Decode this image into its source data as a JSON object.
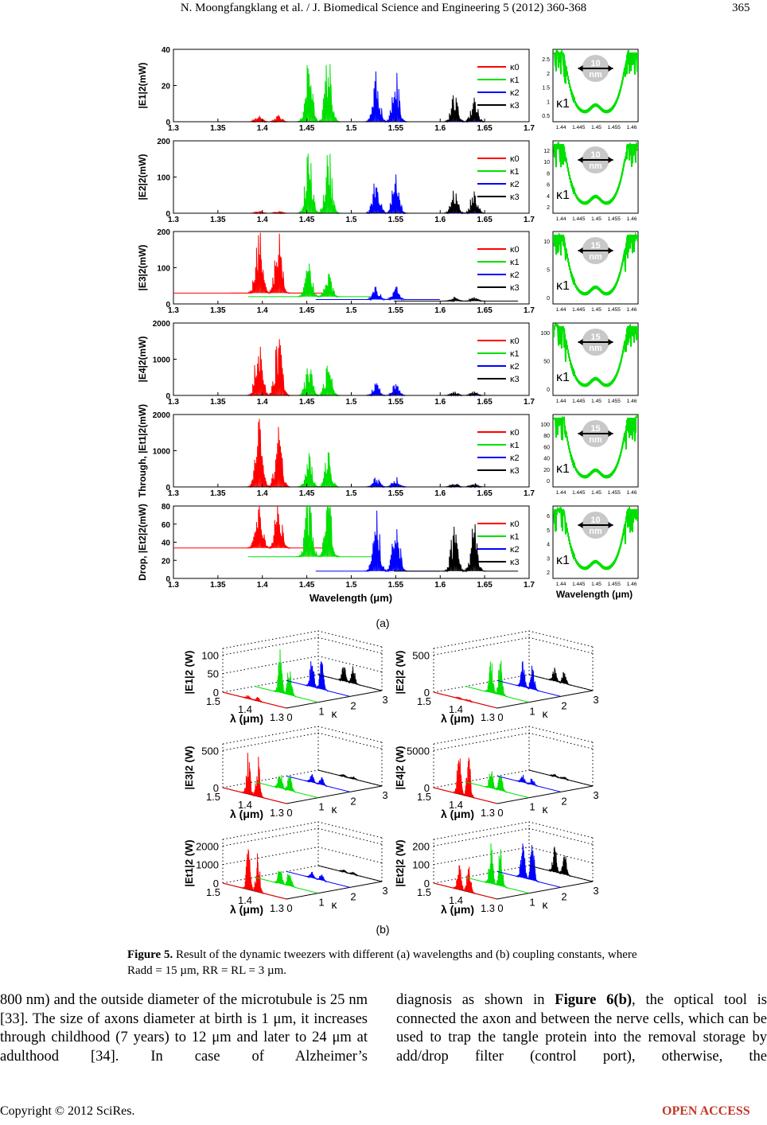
{
  "header": {
    "running_title": "N. Moongfangklang et al. / J. Biomedical Science and Engineering 5 (2012) 360-368",
    "page_number": "365"
  },
  "figure": {
    "colors": [
      "#ff0000",
      "#00e000",
      "#0000ff",
      "#000000"
    ],
    "part_a": {
      "label": "(a)",
      "xlabel": "Wavelength (μm)",
      "inset_xlabel": "Wavelength (μm)",
      "panels": [
        {
          "ylabel": "|E1|2(mW)",
          "yticks": [
            "0",
            "20",
            "40"
          ],
          "xticks": [
            "1.3",
            "1.35",
            "1.4",
            "1.45",
            "1.5",
            "1.55",
            "1.6",
            "1.65",
            "1.7"
          ],
          "legend": [
            "κ0",
            "κ1",
            "κ2",
            "κ3"
          ],
          "inset": {
            "yticks": [
              "0.5",
              "1",
              "1.5",
              "2",
              "2.5"
            ],
            "xticks": [
              "1.44",
              "1.445",
              "1.45",
              "1.455",
              "1.46"
            ],
            "badge_value": "10",
            "badge_unit": "nm",
            "kappa": "κ1"
          }
        },
        {
          "ylabel": "|E2|2(mW)",
          "yticks": [
            "0",
            "100",
            "200"
          ],
          "xticks": [
            "1.3",
            "1.35",
            "1.4",
            "1.45",
            "1.5",
            "1.55",
            "1.6",
            "1.65",
            "1.7"
          ],
          "legend": [
            "κ0",
            "κ1",
            "κ2",
            "κ3"
          ],
          "inset": {
            "yticks": [
              "2",
              "4",
              "6",
              "8",
              "10",
              "12"
            ],
            "xticks": [
              "1.44",
              "1.445",
              "1.45",
              "1.455",
              "1.46"
            ],
            "badge_value": "10",
            "badge_unit": "nm",
            "kappa": "κ1"
          }
        },
        {
          "ylabel": "|E3|2(mW)",
          "yticks": [
            "0",
            "100",
            "200"
          ],
          "xticks": [
            "1.3",
            "1.35",
            "1.4",
            "1.45",
            "1.5",
            "1.55",
            "1.6",
            "1.65",
            "1.7"
          ],
          "legend": [
            "κ0",
            "κ1",
            "κ2",
            "κ3"
          ],
          "inset": {
            "yticks": [
              "0",
              "5",
              "10"
            ],
            "xticks": [
              "1.44",
              "1.445",
              "1.45",
              "1.455",
              "1.46"
            ],
            "badge_value": "15",
            "badge_unit": "nm",
            "kappa": "κ1"
          }
        },
        {
          "ylabel": "|E4|2(mW)",
          "yticks": [
            "0",
            "1000",
            "2000"
          ],
          "xticks": [
            "1.3",
            "1.35",
            "1.4",
            "1.45",
            "1.5",
            "1.55",
            "1.6",
            "1.65",
            "1.7"
          ],
          "legend": [
            "κ0",
            "κ1",
            "κ2",
            "κ3"
          ],
          "inset": {
            "yticks": [
              "0",
              "50",
              "100"
            ],
            "xticks": [
              "1.44",
              "1.445",
              "1.45",
              "1.455",
              "1.46"
            ],
            "badge_value": "15",
            "badge_unit": "nm",
            "kappa": "κ1"
          }
        },
        {
          "ylabel": "Through, |Et1|2(mW)",
          "yticks": [
            "0",
            "1000",
            "2000"
          ],
          "xticks": [
            "1.3",
            "1.35",
            "1.4",
            "1.45",
            "1.5",
            "1.55",
            "1.6",
            "1.65",
            "1.7"
          ],
          "legend": [
            "κ0",
            "κ1",
            "κ2",
            "κ3"
          ],
          "inset": {
            "yticks": [
              "0",
              "20",
              "40",
              "60",
              "80",
              "100"
            ],
            "xticks": [
              "1.44",
              "1.445",
              "1.45",
              "1.455",
              "1.46"
            ],
            "badge_value": "15",
            "badge_unit": "nm",
            "kappa": "κ1"
          }
        },
        {
          "ylabel": "Drop, |Et2|2(mW)",
          "yticks": [
            "0",
            "20",
            "40",
            "60",
            "80"
          ],
          "xticks": [
            "1.3",
            "1.35",
            "1.4",
            "1.45",
            "1.5",
            "1.55",
            "1.6",
            "1.65",
            "1.7"
          ],
          "legend": [
            "κ0",
            "κ1",
            "κ2",
            "κ3"
          ],
          "inset": {
            "yticks": [
              "2",
              "3",
              "4",
              "5",
              "6"
            ],
            "xticks": [
              "1.44",
              "1.445",
              "1.45",
              "1.455",
              "1.46"
            ],
            "badge_value": "10",
            "badge_unit": "nm",
            "kappa": "κ1"
          }
        }
      ]
    },
    "part_b": {
      "label": "(b)",
      "panels": [
        {
          "zlabel": "|E1|2 (W)",
          "zticks": [
            "0",
            "50",
            "100"
          ],
          "lambda_ticks": [
            "1.5",
            "1.4",
            "1.3"
          ],
          "kappa_ticks": [
            "0",
            "1",
            "2",
            "3"
          ],
          "lambda_label": "λ (μm)",
          "kappa_label": "κ"
        },
        {
          "zlabel": "|E2|2 (W)",
          "zticks": [
            "0",
            "500"
          ],
          "lambda_ticks": [
            "1.5",
            "1.4",
            "1.3"
          ],
          "kappa_ticks": [
            "0",
            "1",
            "2",
            "3"
          ],
          "lambda_label": "λ (μm)",
          "kappa_label": "κ"
        },
        {
          "zlabel": "|E3|2 (W)",
          "zticks": [
            "0",
            "500"
          ],
          "lambda_ticks": [
            "1.5",
            "1.4",
            "1.3"
          ],
          "kappa_ticks": [
            "0",
            "1",
            "2",
            "3"
          ],
          "lambda_label": "λ (μm)",
          "kappa_label": "κ"
        },
        {
          "zlabel": "|E4|2 (W)",
          "zticks": [
            "0",
            "5000"
          ],
          "lambda_ticks": [
            "1.5",
            "1.4",
            "1.3"
          ],
          "kappa_ticks": [
            "0",
            "1",
            "2",
            "3"
          ],
          "lambda_label": "λ (μm)",
          "kappa_label": "κ"
        },
        {
          "zlabel": "|Et1|2 (W)",
          "zticks": [
            "0",
            "1000",
            "2000"
          ],
          "lambda_ticks": [
            "1.5",
            "1.4",
            "1.3"
          ],
          "kappa_ticks": [
            "0",
            "1",
            "2",
            "3"
          ],
          "lambda_label": "λ (μm)",
          "kappa_label": "κ"
        },
        {
          "zlabel": "|Et2|2 (W)",
          "zticks": [
            "0",
            "100",
            "200"
          ],
          "lambda_ticks": [
            "1.5",
            "1.4",
            "1.3"
          ],
          "kappa_ticks": [
            "0",
            "1",
            "2",
            "3"
          ],
          "lambda_label": "λ (μm)",
          "kappa_label": "κ"
        }
      ]
    },
    "caption": {
      "label": "Figure 5.",
      "text": "Result of the dynamic tweezers with different (a) wavelengths and (b) coupling constants, where Radd = 15 µm, RR = RL = 3 µm."
    }
  },
  "body": {
    "left": "800 nm) and the outside diameter of the microtubule is 25 nm [33]. The size of axons diameter at birth is 1 μm, it increases through childhood (7 years) to 12 μm and later to 24 μm at adulthood [34]. In case of Alzheimer’s",
    "right": [
      "diagnosis as shown in ",
      "Figure 6(b)",
      ", the optical tool is connected the axon and between the nerve cells, which can be used to trap the tangle protein into the removal storage by add/drop filter (control port), otherwise, the"
    ]
  },
  "footer": {
    "copyright": "Copyright © 2012 SciRes.",
    "access": "OPEN ACCESS"
  }
}
